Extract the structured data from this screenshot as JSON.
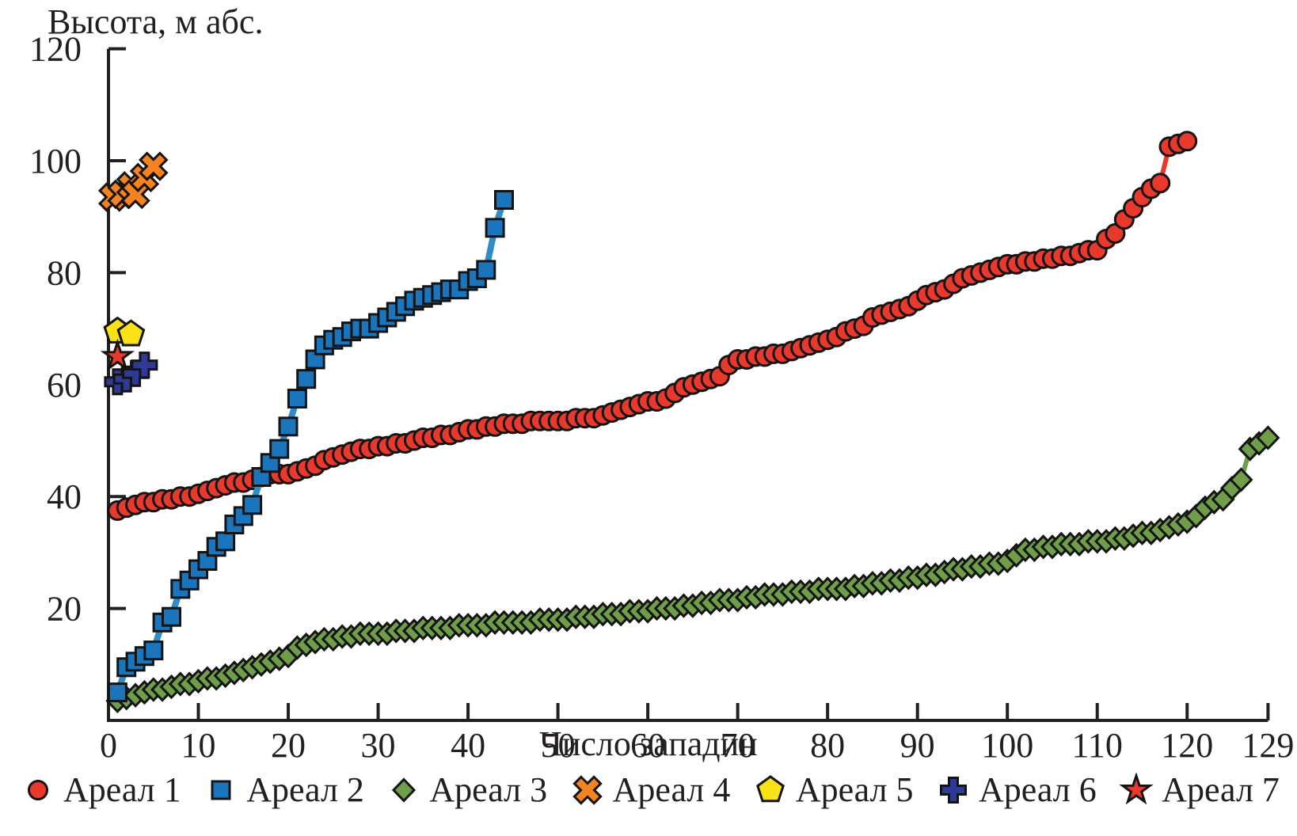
{
  "chart_data": {
    "type": "line",
    "title": "",
    "xlabel": "Число западин",
    "ylabel": "Высота, м абс.",
    "xlim": [
      0,
      129
    ],
    "ylim": [
      0,
      120
    ],
    "x_ticks": [
      0,
      10,
      20,
      30,
      40,
      50,
      60,
      70,
      80,
      90,
      100,
      110,
      120,
      129
    ],
    "y_ticks": [
      20,
      40,
      60,
      80,
      100,
      120
    ],
    "grid": false,
    "legend_position": "bottom",
    "axis_color": "#231f20",
    "series": [
      {
        "name": "Ареал 1",
        "marker": "circle",
        "color": "#e8392c",
        "line_color": "#e8392c",
        "line_width": 6,
        "connected": true,
        "x_first": 1,
        "x_step": 1,
        "y": [
          37.5,
          38,
          38.5,
          39,
          39,
          39.5,
          39.5,
          40,
          40,
          40.5,
          41,
          41.5,
          42,
          42.5,
          42.5,
          43,
          43.5,
          44,
          44,
          44,
          44.5,
          45,
          45.5,
          46.5,
          47,
          47.5,
          48,
          48.5,
          48.5,
          49,
          49,
          49.5,
          49.5,
          50,
          50.5,
          50.5,
          51,
          51,
          51.5,
          52,
          52,
          52.5,
          52.5,
          53,
          53,
          53,
          53.5,
          53.5,
          53.5,
          53.5,
          53.5,
          54,
          54,
          54,
          54.5,
          55,
          55.5,
          56,
          56.5,
          57,
          57,
          57.5,
          58.5,
          59.5,
          60,
          60.5,
          61,
          61.5,
          63.5,
          64.5,
          64.5,
          65,
          65,
          65.5,
          65.5,
          66,
          66.5,
          67,
          67.5,
          68,
          68.5,
          69.5,
          70,
          70.5,
          72,
          72.5,
          73,
          73.5,
          74,
          75,
          76,
          76.5,
          77,
          78,
          79,
          79.5,
          80,
          80.5,
          81,
          81.5,
          81.5,
          82,
          82,
          82.5,
          82.5,
          83,
          83,
          83.5,
          84,
          84,
          86,
          87,
          89.5,
          91.5,
          93.5,
          95,
          96,
          102.5,
          103,
          103.5
        ]
      },
      {
        "name": "Ареал 2",
        "marker": "square",
        "color": "#1b75bc",
        "line_color": "#2e8cc7",
        "line_width": 8,
        "connected": true,
        "x_first": 1,
        "x_step": 1,
        "y": [
          5,
          9.5,
          10.5,
          11.5,
          12.5,
          17.5,
          18.5,
          23.5,
          25,
          27,
          28.5,
          31,
          32,
          35,
          36.5,
          38.5,
          43.5,
          46,
          48.5,
          52.5,
          57.5,
          61,
          64.5,
          67,
          68,
          68.5,
          69.5,
          70,
          70,
          71,
          72,
          73,
          74,
          75,
          75.5,
          76,
          76.5,
          77,
          77,
          78.5,
          79,
          80.5,
          88,
          93
        ]
      },
      {
        "name": "Ареал 3",
        "marker": "diamond",
        "color": "#6f9e49",
        "line_color": "#6f9e49",
        "line_width": 6,
        "connected": true,
        "x_first": 1,
        "x_step": 1,
        "y": [
          3.5,
          4,
          4.5,
          5,
          5.5,
          5.5,
          6,
          6.5,
          6.5,
          7,
          7.5,
          7.5,
          8,
          8.5,
          9,
          9.5,
          10,
          10.5,
          11,
          11.5,
          13,
          13.5,
          14,
          14.5,
          14.5,
          15,
          15,
          15.5,
          15.5,
          15.5,
          15.5,
          16,
          16,
          16,
          16.5,
          16.5,
          16.5,
          16.5,
          17,
          17,
          17,
          17,
          17.5,
          17.5,
          17.5,
          17.5,
          17.5,
          18,
          18,
          18,
          18,
          18.5,
          18.5,
          18.5,
          19,
          19,
          19,
          19.5,
          19.5,
          19.5,
          20,
          20,
          20,
          20.5,
          20.5,
          21,
          21,
          21.5,
          21.5,
          21.5,
          22,
          22,
          22.5,
          22.5,
          22.5,
          23,
          23,
          23,
          23.5,
          23.5,
          23.5,
          23.5,
          24,
          24,
          24.5,
          24.5,
          25,
          25,
          25.5,
          25.5,
          26,
          26,
          26.5,
          27,
          27,
          27.5,
          27.5,
          28,
          28,
          28.5,
          29.5,
          30.5,
          30.5,
          31,
          31,
          31.5,
          31.5,
          31.5,
          32,
          32,
          32,
          32.5,
          32.5,
          33,
          33.5,
          33.5,
          34,
          34.5,
          35,
          35.5,
          36.5,
          38,
          39,
          39.5,
          41.5,
          43,
          48.5,
          49.5,
          50.5
        ]
      },
      {
        "name": "Ареал 4",
        "marker": "xmark",
        "color": "#f5831f",
        "connected": false,
        "points": [
          [
            0.5,
            93.5
          ],
          [
            1.5,
            94
          ],
          [
            2.5,
            95.5
          ],
          [
            3,
            94
          ],
          [
            4,
            97
          ],
          [
            5,
            99
          ]
        ]
      },
      {
        "name": "Ареал 5",
        "marker": "pentagon",
        "color": "#fbe216",
        "connected": false,
        "points": [
          [
            1,
            69.5
          ],
          [
            2.5,
            69
          ]
        ]
      },
      {
        "name": "Ареал 6",
        "marker": "plus",
        "color": "#2e3a96",
        "connected": false,
        "points": [
          [
            1,
            60.5
          ],
          [
            2,
            61
          ],
          [
            3,
            62
          ],
          [
            4,
            63.5
          ]
        ]
      },
      {
        "name": "Ареал 7",
        "marker": "star",
        "color": "#e8392c",
        "connected": false,
        "points": [
          [
            1,
            65
          ]
        ]
      }
    ]
  }
}
